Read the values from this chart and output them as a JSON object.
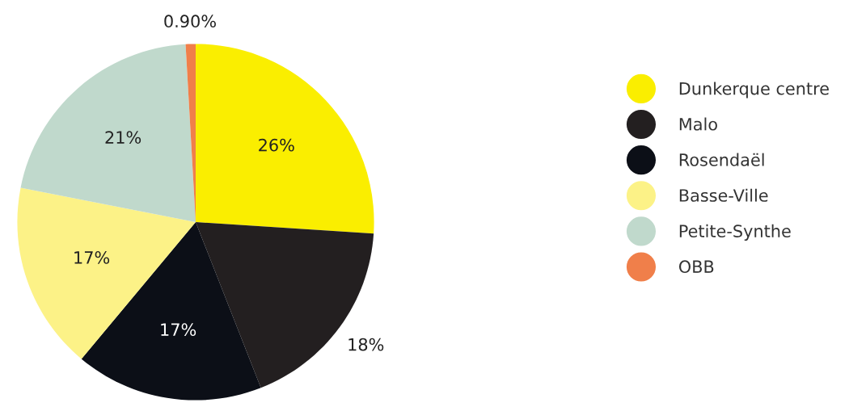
{
  "chart_data": {
    "type": "pie",
    "categories": [
      "Dunkerque centre",
      "Malo",
      "Rosendaël",
      "Basse-Ville",
      "Petite-Synthe",
      "OBB"
    ],
    "values": [
      26,
      18,
      17,
      17,
      21,
      0.9
    ],
    "value_labels": [
      "26%",
      "18%",
      "17%",
      "17%",
      "21%",
      "0.90%"
    ],
    "colors": [
      "#faee00",
      "#231f20",
      "#0c0f17",
      "#fcf287",
      "#c0d9cc",
      "#f07f4a"
    ],
    "legend": "right"
  }
}
